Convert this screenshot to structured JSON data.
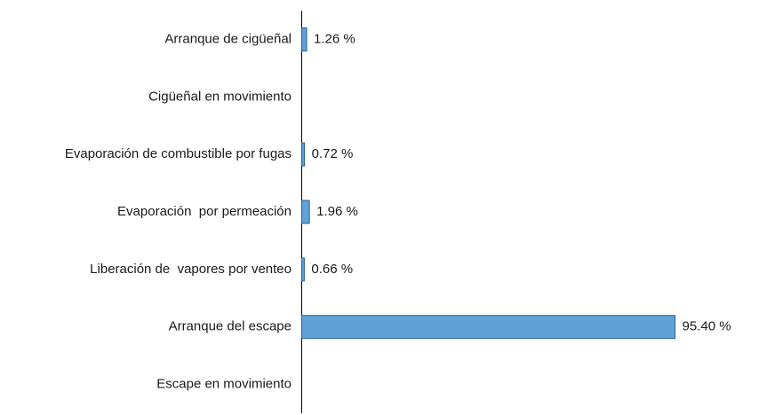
{
  "chart_data": {
    "type": "bar",
    "orientation": "horizontal",
    "categories": [
      "Arranque de cigüeñal",
      "Cigüeñal en movimiento",
      "Evaporación de combustible por fugas",
      "Evaporación  por permeación",
      "Liberación de  vapores por venteo",
      "Arranque del escape",
      "Escape en movimiento"
    ],
    "values": [
      1.26,
      0,
      0.72,
      1.96,
      0.66,
      95.4,
      0
    ],
    "value_labels": [
      "1.26 %",
      null,
      "0.72 %",
      "1.96 %",
      "0.66 %",
      "95.40 %",
      null
    ],
    "color": "#5ea2d8"
  }
}
